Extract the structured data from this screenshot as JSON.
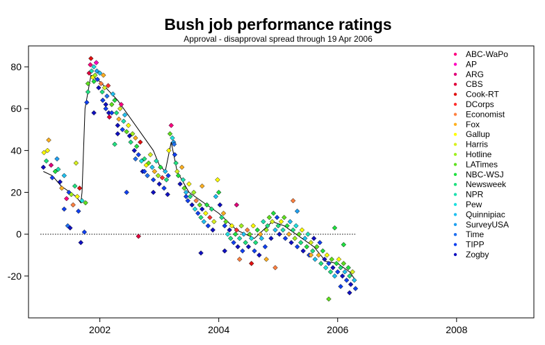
{
  "chart_data": {
    "type": "scatter",
    "title": "Bush job performance ratings",
    "subtitle": "Approval - disapproval spread through 19 Apr 2006",
    "xlabel": "",
    "ylabel": "",
    "xlim": [
      2000.8,
      2009.3
    ],
    "ylim": [
      -40,
      90
    ],
    "x_ticks": [
      2002,
      2004,
      2006,
      2008
    ],
    "y_ticks": [
      -20,
      0,
      20,
      40,
      60,
      80
    ],
    "reference_line": {
      "y": 0,
      "style": "dotted",
      "x_range": [
        2001.0,
        2006.3
      ]
    },
    "legend_position": "top-right",
    "series": [
      {
        "name": "ABC-WaPo",
        "color": "#FF0080"
      },
      {
        "name": "AP",
        "color": "#FF00C0"
      },
      {
        "name": "ARG",
        "color": "#E0007A"
      },
      {
        "name": "CBS",
        "color": "#E0003C"
      },
      {
        "name": "Cook-RT",
        "color": "#E01010"
      },
      {
        "name": "DCorps",
        "color": "#FF3030"
      },
      {
        "name": "Economist",
        "color": "#FF8040"
      },
      {
        "name": "Fox",
        "color": "#FFB020"
      },
      {
        "name": "Gallup",
        "color": "#FFFF00"
      },
      {
        "name": "Harris",
        "color": "#D8F020"
      },
      {
        "name": "Hotline",
        "color": "#A0F020"
      },
      {
        "name": "LATimes",
        "color": "#60E020"
      },
      {
        "name": "NBC-WSJ",
        "color": "#20E040"
      },
      {
        "name": "Newsweek",
        "color": "#20E080"
      },
      {
        "name": "NPR",
        "color": "#20E0B0"
      },
      {
        "name": "Pew",
        "color": "#20E0E0"
      },
      {
        "name": "Quinnipiac",
        "color": "#20C0F0"
      },
      {
        "name": "SurveyUSA",
        "color": "#20A0F0"
      },
      {
        "name": "Time",
        "color": "#2070F0"
      },
      {
        "name": "TIPP",
        "color": "#1040F0"
      },
      {
        "name": "Zogby",
        "color": "#1010C0"
      }
    ],
    "trend": {
      "x": [
        2001.05,
        2001.2,
        2001.35,
        2001.5,
        2001.6,
        2001.68,
        2001.7,
        2001.75,
        2001.85,
        2002.0,
        2002.3,
        2002.6,
        2002.9,
        2003.0,
        2003.1,
        2003.2,
        2003.3,
        2003.5,
        2003.8,
        2004.0,
        2004.3,
        2004.6,
        2004.9,
        2005.1,
        2005.3,
        2005.6,
        2005.8,
        2006.0,
        2006.2,
        2006.3
      ],
      "y": [
        30,
        28,
        23,
        20,
        18,
        15,
        20,
        60,
        76,
        73,
        64,
        52,
        40,
        33,
        30,
        44,
        30,
        20,
        14,
        10,
        2,
        -2,
        6,
        4,
        0,
        -6,
        -13,
        -14,
        -18,
        -22
      ]
    },
    "points": [
      [
        2001.05,
        32,
        20
      ],
      [
        2001.1,
        35,
        13
      ],
      [
        2001.12,
        40,
        8
      ],
      [
        2001.18,
        33,
        2
      ],
      [
        2001.2,
        27,
        19
      ],
      [
        2001.25,
        30,
        12
      ],
      [
        2001.3,
        31,
        14
      ],
      [
        2001.33,
        25,
        20
      ],
      [
        2001.36,
        22,
        7
      ],
      [
        2001.4,
        28,
        16
      ],
      [
        2001.44,
        17,
        0
      ],
      [
        2001.48,
        20,
        19
      ],
      [
        2001.52,
        19,
        10
      ],
      [
        2001.55,
        14,
        6
      ],
      [
        2001.58,
        23,
        13
      ],
      [
        2001.62,
        18,
        8
      ],
      [
        2001.64,
        11,
        19
      ],
      [
        2001.66,
        22,
        4
      ],
      [
        2001.68,
        -4,
        20
      ],
      [
        2001.7,
        16,
        15
      ],
      [
        2001.74,
        1,
        19
      ],
      [
        2001.76,
        15,
        11
      ],
      [
        2001.06,
        39,
        8
      ],
      [
        2001.14,
        45,
        7
      ],
      [
        2001.28,
        36,
        17
      ],
      [
        2001.4,
        12,
        19
      ],
      [
        2001.46,
        4,
        18
      ],
      [
        2001.5,
        3,
        20
      ],
      [
        2001.6,
        34,
        9
      ],
      [
        2001.78,
        63,
        19
      ],
      [
        2001.8,
        68,
        13
      ],
      [
        2001.8,
        72,
        11
      ],
      [
        2001.82,
        77,
        3
      ],
      [
        2001.84,
        81,
        0
      ],
      [
        2001.85,
        84,
        4
      ],
      [
        2001.86,
        78,
        14
      ],
      [
        2001.88,
        75,
        8
      ],
      [
        2001.9,
        73,
        12
      ],
      [
        2001.9,
        80,
        15
      ],
      [
        2001.92,
        76,
        10
      ],
      [
        2001.94,
        82,
        1
      ],
      [
        2001.95,
        78,
        17
      ],
      [
        2001.96,
        74,
        19
      ],
      [
        2001.98,
        70,
        20
      ],
      [
        2002.0,
        77,
        16
      ],
      [
        2002.02,
        72,
        6
      ],
      [
        2002.04,
        68,
        13
      ],
      [
        2002.05,
        64,
        20
      ],
      [
        2002.06,
        76,
        7
      ],
      [
        2002.08,
        70,
        9
      ],
      [
        2002.1,
        60,
        19
      ],
      [
        2002.12,
        66,
        18
      ],
      [
        2002.14,
        71,
        5
      ],
      [
        2002.15,
        58,
        20
      ],
      [
        2002.16,
        56,
        3
      ],
      [
        2002.2,
        62,
        11
      ],
      [
        2002.22,
        67,
        16
      ],
      [
        2002.25,
        64,
        12
      ],
      [
        2002.28,
        58,
        13
      ],
      [
        2002.3,
        52,
        20
      ],
      [
        2002.32,
        55,
        7
      ],
      [
        2002.34,
        60,
        9
      ],
      [
        2002.36,
        62,
        0
      ],
      [
        2002.38,
        50,
        19
      ],
      [
        2002.4,
        54,
        14
      ],
      [
        2002.42,
        57,
        16
      ],
      [
        2002.45,
        49,
        11
      ],
      [
        2002.48,
        52,
        8
      ],
      [
        2002.5,
        47,
        20
      ],
      [
        2002.52,
        44,
        13
      ],
      [
        2002.55,
        48,
        10
      ],
      [
        2002.58,
        40,
        20
      ],
      [
        2002.6,
        46,
        7
      ],
      [
        2002.62,
        42,
        12
      ],
      [
        2002.65,
        38,
        19
      ],
      [
        2002.68,
        44,
        4
      ],
      [
        2002.7,
        35,
        15
      ],
      [
        2002.72,
        30,
        20
      ],
      [
        2002.75,
        36,
        13
      ],
      [
        2002.78,
        33,
        8
      ],
      [
        2002.8,
        28,
        18
      ],
      [
        2002.82,
        34,
        11
      ],
      [
        2002.85,
        38,
        9
      ],
      [
        2002.88,
        32,
        16
      ],
      [
        2002.9,
        26,
        19
      ],
      [
        2002.92,
        30,
        7
      ],
      [
        2002.95,
        35,
        14
      ],
      [
        2002.98,
        28,
        10
      ],
      [
        2003.0,
        24,
        20
      ],
      [
        2003.02,
        32,
        12
      ],
      [
        2003.05,
        27,
        5
      ],
      [
        2003.08,
        22,
        19
      ],
      [
        2003.1,
        30,
        16
      ],
      [
        2003.12,
        26,
        13
      ],
      [
        2003.14,
        19,
        20
      ],
      [
        2003.16,
        40,
        8
      ],
      [
        2003.18,
        48,
        11
      ],
      [
        2003.2,
        52,
        0
      ],
      [
        2003.22,
        46,
        15
      ],
      [
        2003.24,
        44,
        17
      ],
      [
        2003.26,
        38,
        19
      ],
      [
        2003.28,
        34,
        13
      ],
      [
        2003.3,
        30,
        9
      ],
      [
        2003.32,
        28,
        12
      ],
      [
        2003.35,
        24,
        20
      ],
      [
        2003.38,
        32,
        7
      ],
      [
        2003.4,
        26,
        14
      ],
      [
        2003.42,
        22,
        11
      ],
      [
        2003.45,
        20,
        16
      ],
      [
        2003.48,
        16,
        19
      ],
      [
        2003.5,
        24,
        8
      ],
      [
        2003.52,
        18,
        13
      ],
      [
        2003.55,
        14,
        20
      ],
      [
        2003.58,
        20,
        10
      ],
      [
        2003.6,
        12,
        15
      ],
      [
        2003.62,
        16,
        6
      ],
      [
        2003.65,
        10,
        19
      ],
      [
        2003.68,
        14,
        11
      ],
      [
        2003.7,
        8,
        13
      ],
      [
        2003.72,
        12,
        20
      ],
      [
        2003.75,
        6,
        16
      ],
      [
        2003.78,
        10,
        8
      ],
      [
        2003.8,
        14,
        12
      ],
      [
        2003.82,
        4,
        19
      ],
      [
        2003.85,
        8,
        5
      ],
      [
        2003.88,
        12,
        13
      ],
      [
        2003.9,
        2,
        20
      ],
      [
        2003.92,
        6,
        9
      ],
      [
        2003.95,
        18,
        16
      ],
      [
        2003.98,
        26,
        8
      ],
      [
        2004.0,
        20,
        12
      ],
      [
        2004.02,
        14,
        20
      ],
      [
        2004.05,
        8,
        13
      ],
      [
        2004.08,
        10,
        7
      ],
      [
        2004.1,
        4,
        19
      ],
      [
        2004.12,
        6,
        11
      ],
      [
        2004.15,
        0,
        15
      ],
      [
        2004.18,
        2,
        20
      ],
      [
        2004.2,
        -2,
        13
      ],
      [
        2004.22,
        4,
        8
      ],
      [
        2004.25,
        -4,
        19
      ],
      [
        2004.28,
        0,
        12
      ],
      [
        2004.3,
        2,
        5
      ],
      [
        2004.32,
        -6,
        20
      ],
      [
        2004.35,
        -2,
        14
      ],
      [
        2004.38,
        4,
        10
      ],
      [
        2004.4,
        -8,
        19
      ],
      [
        2004.42,
        0,
        16
      ],
      [
        2004.45,
        -4,
        13
      ],
      [
        2004.48,
        2,
        6
      ],
      [
        2004.5,
        -6,
        20
      ],
      [
        2004.52,
        0,
        11
      ],
      [
        2004.55,
        -2,
        15
      ],
      [
        2004.58,
        4,
        8
      ],
      [
        2004.6,
        -8,
        19
      ],
      [
        2004.62,
        -4,
        13
      ],
      [
        2004.65,
        2,
        12
      ],
      [
        2004.68,
        -10,
        20
      ],
      [
        2004.7,
        0,
        7
      ],
      [
        2004.72,
        -2,
        16
      ],
      [
        2004.75,
        6,
        14
      ],
      [
        2004.78,
        -6,
        19
      ],
      [
        2004.8,
        2,
        10
      ],
      [
        2004.82,
        4,
        13
      ],
      [
        2004.85,
        8,
        11
      ],
      [
        2004.88,
        -2,
        20
      ],
      [
        2004.9,
        6,
        9
      ],
      [
        2004.92,
        10,
        12
      ],
      [
        2004.95,
        2,
        16
      ],
      [
        2004.98,
        8,
        19
      ],
      [
        2005.0,
        4,
        13
      ],
      [
        2005.02,
        0,
        20
      ],
      [
        2005.05,
        6,
        8
      ],
      [
        2005.08,
        2,
        14
      ],
      [
        2005.1,
        8,
        11
      ],
      [
        2005.12,
        -2,
        19
      ],
      [
        2005.15,
        4,
        12
      ],
      [
        2005.18,
        0,
        7
      ],
      [
        2005.2,
        6,
        16
      ],
      [
        2005.22,
        -4,
        20
      ],
      [
        2005.25,
        2,
        13
      ],
      [
        2005.28,
        -2,
        10
      ],
      [
        2005.3,
        4,
        15
      ],
      [
        2005.32,
        -6,
        19
      ],
      [
        2005.35,
        0,
        11
      ],
      [
        2005.38,
        -4,
        13
      ],
      [
        2005.4,
        2,
        8
      ],
      [
        2005.42,
        -8,
        20
      ],
      [
        2005.45,
        -2,
        16
      ],
      [
        2005.48,
        -6,
        12
      ],
      [
        2005.5,
        0,
        14
      ],
      [
        2005.52,
        -10,
        19
      ],
      [
        2005.55,
        -4,
        9
      ],
      [
        2005.58,
        -8,
        13
      ],
      [
        2005.6,
        -2,
        20
      ],
      [
        2005.62,
        -12,
        16
      ],
      [
        2005.65,
        -6,
        11
      ],
      [
        2005.68,
        -10,
        7
      ],
      [
        2005.7,
        -4,
        19
      ],
      [
        2005.72,
        -14,
        13
      ],
      [
        2005.75,
        -8,
        12
      ],
      [
        2005.78,
        -12,
        20
      ],
      [
        2005.8,
        -16,
        15
      ],
      [
        2005.82,
        -10,
        8
      ],
      [
        2005.85,
        -14,
        19
      ],
      [
        2005.88,
        -18,
        13
      ],
      [
        2005.9,
        -12,
        11
      ],
      [
        2005.92,
        -16,
        20
      ],
      [
        2005.95,
        -20,
        16
      ],
      [
        2005.98,
        -14,
        12
      ],
      [
        2006.0,
        -18,
        19
      ],
      [
        2006.02,
        -12,
        8
      ],
      [
        2006.05,
        -16,
        13
      ],
      [
        2006.08,
        -20,
        20
      ],
      [
        2006.1,
        -14,
        11
      ],
      [
        2006.12,
        -18,
        16
      ],
      [
        2006.15,
        -22,
        19
      ],
      [
        2006.18,
        -16,
        12
      ],
      [
        2006.2,
        -20,
        13
      ],
      [
        2006.22,
        -24,
        20
      ],
      [
        2006.25,
        -18,
        9
      ],
      [
        2006.28,
        -22,
        16
      ],
      [
        2006.3,
        -26,
        19
      ],
      [
        2002.05,
        64,
        19
      ],
      [
        2002.1,
        62,
        20
      ],
      [
        2002.2,
        58,
        19
      ],
      [
        2002.3,
        48,
        20
      ],
      [
        2002.6,
        36,
        18
      ],
      [
        2002.75,
        30,
        19
      ],
      [
        2002.65,
        -1,
        3
      ],
      [
        2003.25,
        43,
        18
      ],
      [
        2003.45,
        18,
        19
      ],
      [
        2003.7,
        -9,
        20
      ],
      [
        2004.1,
        -8,
        20
      ],
      [
        2004.35,
        -12,
        6
      ],
      [
        2004.55,
        -14,
        4
      ],
      [
        2004.8,
        -12,
        7
      ],
      [
        2005.25,
        16,
        6
      ],
      [
        2005.32,
        11,
        17
      ],
      [
        2005.85,
        -31,
        11
      ],
      [
        2005.95,
        3,
        12
      ],
      [
        2006.05,
        -25,
        19
      ],
      [
        2006.2,
        -28,
        20
      ],
      [
        2002.9,
        20,
        20
      ],
      [
        2002.45,
        20,
        19
      ],
      [
        2003.15,
        28,
        19
      ],
      [
        2001.9,
        58,
        20
      ],
      [
        2002.25,
        43,
        13
      ],
      [
        2003.72,
        23,
        7
      ],
      [
        2004.3,
        14,
        2
      ],
      [
        2004.95,
        -16,
        6
      ],
      [
        2005.55,
        -10,
        7
      ],
      [
        2006.1,
        -5,
        12
      ]
    ]
  }
}
